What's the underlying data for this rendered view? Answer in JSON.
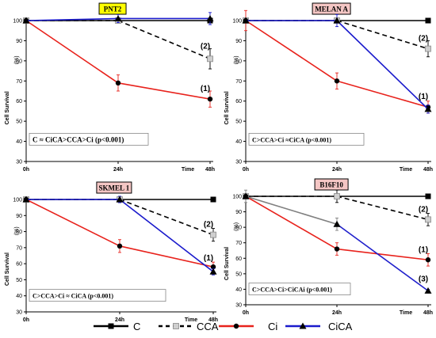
{
  "chart_data": [
    {
      "type": "line",
      "title": "PNT2",
      "title_bg": "#ffff00",
      "ylabel": "Cell Survival",
      "yunit": "(%)",
      "x_ticks": [
        "0h",
        "24h",
        "48h"
      ],
      "x_time_label": "Time",
      "ylim": [
        30,
        100
      ],
      "yticks": [
        30,
        40,
        50,
        60,
        70,
        80,
        90,
        100
      ],
      "stat_text": "C ≈ CiCA>CCA>Ci  (p<0.001)",
      "series": [
        {
          "name": "C",
          "x": [
            0,
            24,
            48
          ],
          "y": [
            100,
            100,
            100
          ],
          "err": [
            0,
            0,
            0
          ]
        },
        {
          "name": "CCA",
          "x": [
            0,
            24,
            48
          ],
          "y": [
            100,
            100,
            81
          ],
          "err": [
            0,
            0,
            5
          ]
        },
        {
          "name": "Ci",
          "x": [
            0,
            24,
            48
          ],
          "y": [
            100,
            69,
            61
          ],
          "err": [
            0,
            4,
            4
          ]
        },
        {
          "name": "CiCA",
          "x": [
            0,
            24,
            48
          ],
          "y": [
            100,
            101,
            101
          ],
          "err": [
            0,
            2,
            3
          ]
        }
      ],
      "annotations": [
        {
          "text": "(2)",
          "x": 48,
          "y": 86
        },
        {
          "text": "(1)",
          "x": 48,
          "y": 65
        }
      ]
    },
    {
      "type": "line",
      "title": "MELAN A",
      "title_bg": "#f4c6c4",
      "ylabel": "Cell Survival",
      "yunit": "(%)",
      "x_ticks": [
        "0h",
        "24h",
        "48h"
      ],
      "x_time_label": "Time",
      "ylim": [
        30,
        100
      ],
      "yticks": [
        30,
        40,
        50,
        60,
        70,
        80,
        90,
        100
      ],
      "stat_text": "C>CCA>Ci ≈CiCA (p<0.001)",
      "series": [
        {
          "name": "C",
          "x": [
            0,
            24,
            48
          ],
          "y": [
            100,
            100,
            100
          ],
          "err": [
            0,
            0,
            0
          ]
        },
        {
          "name": "CCA",
          "x": [
            0,
            24,
            48
          ],
          "y": [
            100,
            100,
            86
          ],
          "err": [
            0,
            0,
            4
          ]
        },
        {
          "name": "Ci",
          "x": [
            0,
            24,
            48
          ],
          "y": [
            100,
            70,
            57
          ],
          "err": [
            5,
            4,
            3
          ]
        },
        {
          "name": "CiCA",
          "x": [
            0,
            24,
            48
          ],
          "y": [
            100,
            100,
            56
          ],
          "err": [
            0,
            3,
            2
          ]
        }
      ],
      "annotations": [
        {
          "text": "(2)",
          "x": 48,
          "y": 90
        },
        {
          "text": "(1)",
          "x": 48,
          "y": 61
        }
      ]
    },
    {
      "type": "line",
      "title": "SKMEL 1",
      "title_bg": "#f4c6c4",
      "ylabel": "Cell Survival",
      "yunit": "(%)",
      "x_ticks": [
        "0h",
        "24h",
        "48h"
      ],
      "x_time_label": "Time",
      "ylim": [
        30,
        100
      ],
      "yticks": [
        30,
        40,
        50,
        60,
        70,
        80,
        90,
        100
      ],
      "stat_text": "C>CCA>Ci ≈ CiCA (p<0.001)",
      "series": [
        {
          "name": "C",
          "x": [
            0,
            24,
            48
          ],
          "y": [
            100,
            100,
            100
          ],
          "err": [
            0,
            0,
            0
          ]
        },
        {
          "name": "CCA",
          "x": [
            0,
            24,
            48
          ],
          "y": [
            100,
            100,
            78
          ],
          "err": [
            0,
            0,
            4
          ]
        },
        {
          "name": "Ci",
          "x": [
            0,
            24,
            48
          ],
          "y": [
            100,
            71,
            58
          ],
          "err": [
            0,
            4,
            3
          ]
        },
        {
          "name": "CiCA",
          "x": [
            0,
            24,
            48
          ],
          "y": [
            100,
            100,
            55
          ],
          "err": [
            0,
            2,
            2
          ]
        }
      ],
      "annotations": [
        {
          "text": "(2)",
          "x": 48,
          "y": 83
        },
        {
          "text": "(1)",
          "x": 48,
          "y": 62
        }
      ]
    },
    {
      "type": "line",
      "title": "B16F10",
      "title_bg": "#f4c6c4",
      "ylabel": "Cell Survival",
      "yunit": "(%)",
      "x_ticks": [
        "0h",
        "24h",
        "48h"
      ],
      "x_time_label": "Time",
      "ylim": [
        30,
        100
      ],
      "yticks": [
        30,
        40,
        50,
        60,
        70,
        80,
        90,
        100
      ],
      "stat_text": "C>CCA>Ci>CiCAi (p<0.001)",
      "series": [
        {
          "name": "C",
          "x": [
            0,
            24,
            48
          ],
          "y": [
            100,
            100,
            100
          ],
          "err": [
            0,
            0,
            0
          ]
        },
        {
          "name": "CCA",
          "x": [
            0,
            24,
            48
          ],
          "y": [
            100,
            100,
            85
          ],
          "err": [
            0,
            4,
            4
          ]
        },
        {
          "name": "Ci",
          "x": [
            0,
            24,
            48
          ],
          "y": [
            100,
            66,
            59
          ],
          "err": [
            0,
            4,
            4
          ]
        },
        {
          "name": "CiCA",
          "x": [
            0,
            24,
            48
          ],
          "y": [
            100,
            82,
            39
          ],
          "err": [
            4,
            4,
            1
          ]
        }
      ],
      "series_colors": {
        "CiCA": [
          "#808080",
          "#2020cc"
        ]
      },
      "annotations": [
        {
          "text": "(2)",
          "x": 48,
          "y": 90
        },
        {
          "text": "(1)",
          "x": 48,
          "y": 64
        },
        {
          "text": "(3)",
          "x": 48,
          "y": 45
        }
      ]
    }
  ],
  "series_styles": {
    "C": {
      "color": "#000000",
      "dash": "",
      "marker": "square"
    },
    "CCA": {
      "color": "#000000",
      "dash": "6,4",
      "marker": "cross-square"
    },
    "Ci": {
      "color": "#e8221c",
      "dash": "",
      "marker": "circle"
    },
    "CiCA": {
      "color": "#1a1acc",
      "dash": "",
      "marker": "triangle"
    }
  },
  "legend": {
    "entries": [
      "C",
      "CCA",
      "Ci",
      "CiCA"
    ],
    "placement": "bottom"
  }
}
